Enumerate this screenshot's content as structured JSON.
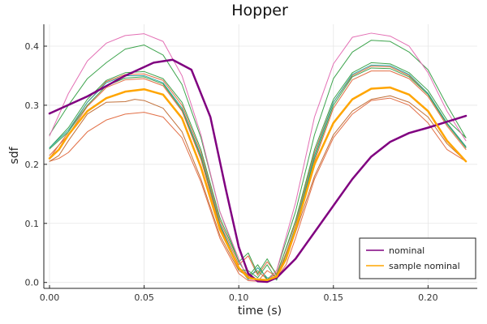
{
  "chart_data": {
    "type": "line",
    "title": "Hopper",
    "xlabel": "time (s)",
    "ylabel": "sdf",
    "xlim": [
      -0.003,
      0.226
    ],
    "ylim": [
      -0.01,
      0.437
    ],
    "xticks": [
      {
        "value": 0.0,
        "label": "0.00"
      },
      {
        "value": 0.05,
        "label": "0.05"
      },
      {
        "value": 0.1,
        "label": "0.10"
      },
      {
        "value": 0.15,
        "label": "0.15"
      },
      {
        "value": 0.2,
        "label": "0.20"
      }
    ],
    "yticks": [
      {
        "value": 0.0,
        "label": "0.0"
      },
      {
        "value": 0.1,
        "label": "0.1"
      },
      {
        "value": 0.2,
        "label": "0.2"
      },
      {
        "value": 0.3,
        "label": "0.3"
      },
      {
        "value": 0.4,
        "label": "0.4"
      }
    ],
    "grid": true,
    "legend_position": "bottom-right",
    "legend": [
      {
        "label": "nominal",
        "color": "#800080"
      },
      {
        "label": "sample nominal",
        "color": "#FFA500"
      }
    ],
    "series": [
      {
        "name": "nominal",
        "color": "#800080",
        "width": 2.5,
        "legend": true,
        "x": [
          0.0,
          0.02,
          0.04,
          0.055,
          0.065,
          0.075,
          0.085,
          0.093,
          0.1,
          0.105,
          0.11,
          0.115,
          0.12,
          0.13,
          0.14,
          0.15,
          0.16,
          0.17,
          0.18,
          0.19,
          0.2,
          0.21,
          0.22
        ],
        "y": [
          0.286,
          0.315,
          0.35,
          0.372,
          0.377,
          0.36,
          0.28,
          0.16,
          0.06,
          0.015,
          0.002,
          0.001,
          0.008,
          0.04,
          0.085,
          0.13,
          0.175,
          0.213,
          0.238,
          0.253,
          0.262,
          0.272,
          0.282
        ]
      },
      {
        "name": "sample nominal",
        "color": "#FFA500",
        "width": 2.5,
        "legend": true,
        "x": [
          0.0,
          0.005,
          0.01,
          0.02,
          0.03,
          0.04,
          0.05,
          0.06,
          0.07,
          0.08,
          0.09,
          0.1,
          0.105,
          0.11,
          0.115,
          0.12,
          0.125,
          0.13,
          0.14,
          0.15,
          0.16,
          0.17,
          0.18,
          0.19,
          0.2,
          0.21,
          0.22
        ],
        "y": [
          0.21,
          0.225,
          0.25,
          0.29,
          0.312,
          0.323,
          0.327,
          0.318,
          0.278,
          0.195,
          0.09,
          0.025,
          0.008,
          0.005,
          0.004,
          0.01,
          0.04,
          0.09,
          0.2,
          0.27,
          0.31,
          0.328,
          0.33,
          0.318,
          0.29,
          0.24,
          0.205
        ]
      },
      {
        "color": "#E26F46",
        "width": 1,
        "x": [
          0.0,
          0.005,
          0.01,
          0.02,
          0.03,
          0.04,
          0.05,
          0.06,
          0.07,
          0.08,
          0.09,
          0.1,
          0.105,
          0.11,
          0.115,
          0.12,
          0.125,
          0.13,
          0.14,
          0.15,
          0.16,
          0.17,
          0.18,
          0.19,
          0.2,
          0.21,
          0.22
        ],
        "y": [
          0.205,
          0.21,
          0.22,
          0.255,
          0.275,
          0.285,
          0.288,
          0.28,
          0.245,
          0.17,
          0.075,
          0.015,
          0.003,
          0.002,
          0.002,
          0.008,
          0.03,
          0.075,
          0.175,
          0.245,
          0.285,
          0.308,
          0.312,
          0.3,
          0.27,
          0.225,
          0.205
        ]
      },
      {
        "color": "#C2713A",
        "width": 1,
        "x": [
          0.0,
          0.005,
          0.01,
          0.02,
          0.03,
          0.04,
          0.045,
          0.05,
          0.06,
          0.07,
          0.08,
          0.09,
          0.1,
          0.105,
          0.11,
          0.115,
          0.12,
          0.125,
          0.13,
          0.14,
          0.15,
          0.16,
          0.17,
          0.18,
          0.19,
          0.2,
          0.21,
          0.22
        ],
        "y": [
          0.205,
          0.215,
          0.24,
          0.285,
          0.305,
          0.306,
          0.31,
          0.308,
          0.295,
          0.255,
          0.175,
          0.08,
          0.02,
          0.01,
          0.02,
          0.005,
          0.015,
          0.04,
          0.085,
          0.18,
          0.25,
          0.29,
          0.31,
          0.316,
          0.305,
          0.28,
          0.235,
          0.205
        ]
      },
      {
        "color": "#E26F46",
        "width": 1,
        "x": [
          0.0,
          0.01,
          0.02,
          0.03,
          0.04,
          0.05,
          0.06,
          0.07,
          0.08,
          0.09,
          0.1,
          0.105,
          0.11,
          0.115,
          0.12,
          0.13,
          0.14,
          0.15,
          0.16,
          0.17,
          0.18,
          0.19,
          0.2,
          0.21,
          0.22
        ],
        "y": [
          0.21,
          0.255,
          0.305,
          0.34,
          0.352,
          0.353,
          0.342,
          0.3,
          0.22,
          0.105,
          0.03,
          0.045,
          0.012,
          0.035,
          0.015,
          0.1,
          0.22,
          0.305,
          0.35,
          0.366,
          0.365,
          0.35,
          0.32,
          0.27,
          0.23
        ]
      },
      {
        "color": "#3DA44D",
        "width": 1,
        "x": [
          0.0,
          0.01,
          0.02,
          0.03,
          0.04,
          0.05,
          0.06,
          0.07,
          0.08,
          0.09,
          0.1,
          0.105,
          0.11,
          0.115,
          0.12,
          0.13,
          0.14,
          0.15,
          0.16,
          0.17,
          0.18,
          0.19,
          0.2,
          0.21,
          0.22
        ],
        "y": [
          0.228,
          0.262,
          0.31,
          0.342,
          0.355,
          0.357,
          0.345,
          0.305,
          0.225,
          0.11,
          0.035,
          0.05,
          0.015,
          0.04,
          0.012,
          0.105,
          0.225,
          0.31,
          0.355,
          0.372,
          0.37,
          0.355,
          0.325,
          0.275,
          0.245
        ]
      },
      {
        "color": "#3DA44D",
        "width": 1,
        "x": [
          0.0,
          0.01,
          0.02,
          0.03,
          0.04,
          0.05,
          0.06,
          0.07,
          0.08,
          0.09,
          0.1,
          0.105,
          0.11,
          0.115,
          0.12,
          0.13,
          0.14,
          0.15,
          0.16,
          0.17,
          0.18,
          0.19,
          0.2,
          0.21,
          0.22
        ],
        "y": [
          0.25,
          0.3,
          0.345,
          0.372,
          0.395,
          0.402,
          0.385,
          0.335,
          0.245,
          0.12,
          0.035,
          0.01,
          0.03,
          0.005,
          0.02,
          0.12,
          0.25,
          0.345,
          0.39,
          0.41,
          0.408,
          0.39,
          0.36,
          0.3,
          0.245
        ]
      },
      {
        "color": "#E36FB4",
        "width": 1,
        "x": [
          0.0,
          0.01,
          0.02,
          0.03,
          0.04,
          0.05,
          0.06,
          0.07,
          0.08,
          0.09,
          0.1,
          0.105,
          0.11,
          0.115,
          0.12,
          0.13,
          0.14,
          0.15,
          0.16,
          0.17,
          0.18,
          0.19,
          0.2,
          0.21,
          0.22
        ],
        "y": [
          0.248,
          0.32,
          0.375,
          0.405,
          0.418,
          0.421,
          0.408,
          0.35,
          0.25,
          0.12,
          0.04,
          0.005,
          0.002,
          0.003,
          0.02,
          0.135,
          0.28,
          0.37,
          0.415,
          0.422,
          0.417,
          0.4,
          0.355,
          0.29,
          0.24
        ]
      },
      {
        "color": "#2CA6A4",
        "width": 1,
        "x": [
          0.0,
          0.01,
          0.02,
          0.03,
          0.04,
          0.05,
          0.06,
          0.07,
          0.08,
          0.09,
          0.1,
          0.105,
          0.11,
          0.115,
          0.12,
          0.13,
          0.14,
          0.15,
          0.16,
          0.17,
          0.18,
          0.19,
          0.2,
          0.21,
          0.22
        ],
        "y": [
          0.228,
          0.258,
          0.305,
          0.338,
          0.35,
          0.35,
          0.338,
          0.295,
          0.215,
          0.1,
          0.025,
          0.005,
          0.025,
          0.008,
          0.005,
          0.095,
          0.215,
          0.305,
          0.352,
          0.368,
          0.367,
          0.352,
          0.32,
          0.27,
          0.23
        ]
      },
      {
        "color": "#3DA44D",
        "width": 1,
        "x": [
          0.0,
          0.01,
          0.02,
          0.03,
          0.04,
          0.05,
          0.06,
          0.07,
          0.08,
          0.09,
          0.1,
          0.105,
          0.11,
          0.115,
          0.12,
          0.13,
          0.14,
          0.15,
          0.16,
          0.17,
          0.18,
          0.19,
          0.2,
          0.21,
          0.22
        ],
        "y": [
          0.226,
          0.255,
          0.3,
          0.333,
          0.346,
          0.348,
          0.336,
          0.292,
          0.212,
          0.098,
          0.022,
          0.02,
          0.008,
          0.03,
          0.004,
          0.092,
          0.21,
          0.3,
          0.348,
          0.363,
          0.362,
          0.348,
          0.318,
          0.268,
          0.228
        ]
      },
      {
        "color": "#E26F46",
        "width": 1,
        "x": [
          0.0,
          0.01,
          0.02,
          0.03,
          0.04,
          0.05,
          0.06,
          0.07,
          0.08,
          0.09,
          0.1,
          0.105,
          0.11,
          0.115,
          0.12,
          0.13,
          0.14,
          0.15,
          0.16,
          0.17,
          0.18,
          0.19,
          0.2,
          0.21,
          0.22
        ],
        "y": [
          0.215,
          0.25,
          0.298,
          0.33,
          0.343,
          0.345,
          0.333,
          0.29,
          0.208,
          0.095,
          0.025,
          0.012,
          0.002,
          0.02,
          0.01,
          0.09,
          0.205,
          0.295,
          0.343,
          0.358,
          0.358,
          0.345,
          0.315,
          0.265,
          0.225
        ]
      }
    ]
  }
}
